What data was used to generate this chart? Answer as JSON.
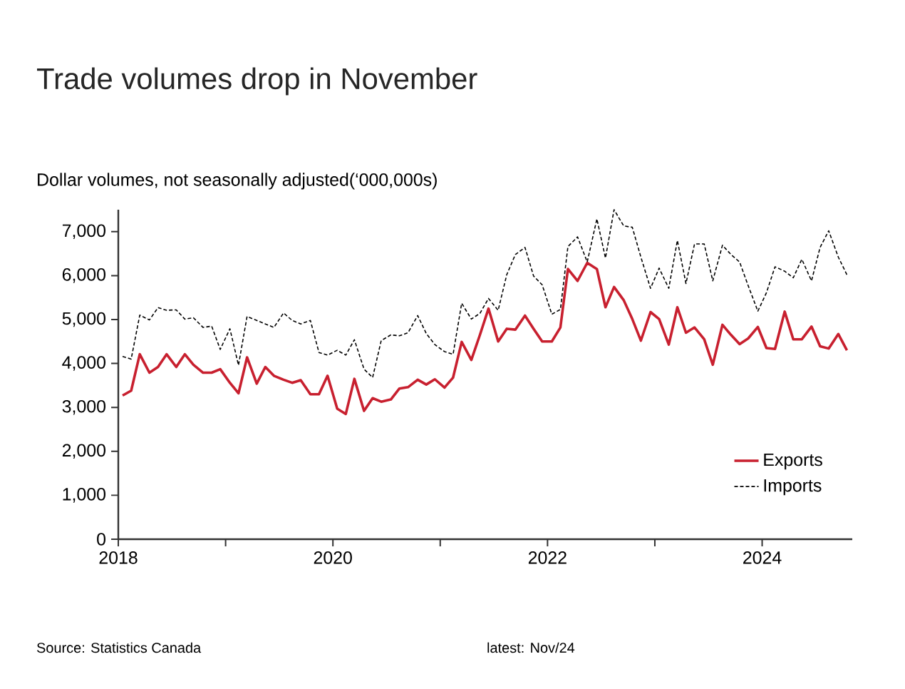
{
  "chart_data": {
    "type": "line",
    "title": "Trade volumes drop in November",
    "ylabel": "Dollar volumes, not seasonally adjusted(‘000,000s)",
    "xlim": [
      2018,
      2024.84
    ],
    "ylim": [
      0,
      7500
    ],
    "xticks": [
      2018,
      {
        "value": 2019,
        "label": null
      },
      2020,
      {
        "value": 2021,
        "label": null
      },
      2022,
      {
        "value": 2023,
        "label": null
      },
      2024
    ],
    "yticks": [
      0,
      {
        "value": 1000,
        "label": "1,000"
      },
      {
        "value": 2000,
        "label": "2,000"
      },
      {
        "value": 3000,
        "label": "3,000"
      },
      {
        "value": 4000,
        "label": "4,000"
      },
      {
        "value": 5000,
        "label": "5,000"
      },
      {
        "value": 6000,
        "label": "6,000"
      },
      {
        "value": 7000,
        "label": "7,000"
      }
    ],
    "legend": "bottom right",
    "grid": false,
    "series": [
      {
        "name": "Exports",
        "color": "#c8202f",
        "line_style": "solid",
        "x": [
          2018.04,
          2018.12,
          2018.2,
          2018.29,
          2018.37,
          2018.45,
          2018.54,
          2018.62,
          2018.7,
          2018.79,
          2018.87,
          2018.95,
          2019.04,
          2019.12,
          2019.2,
          2019.29,
          2019.37,
          2019.45,
          2019.54,
          2019.62,
          2019.7,
          2019.79,
          2019.87,
          2019.95,
          2020.04,
          2020.12,
          2020.2,
          2020.29,
          2020.37,
          2020.45,
          2020.54,
          2020.62,
          2020.7,
          2020.79,
          2020.87,
          2020.95,
          2021.04,
          2021.12,
          2021.2,
          2021.29,
          2021.37,
          2021.45,
          2021.54,
          2021.62,
          2021.7,
          2021.79,
          2021.87,
          2021.95,
          2022.04,
          2022.12,
          2022.19,
          2022.28,
          2022.37,
          2022.46,
          2022.54,
          2022.62,
          2022.71,
          2022.79,
          2022.87,
          2022.96,
          2023.04,
          2023.13,
          2023.21,
          2023.29,
          2023.37,
          2023.46,
          2023.54,
          2023.63,
          2023.71,
          2023.79,
          2023.87,
          2023.96,
          2024.04,
          2024.12,
          2024.21,
          2024.29,
          2024.37,
          2024.46,
          2024.54,
          2024.62,
          2024.71,
          2024.79
        ],
        "values": [
          3270,
          3380,
          4210,
          3790,
          3920,
          4210,
          3920,
          4210,
          3970,
          3790,
          3790,
          3870,
          3560,
          3320,
          4140,
          3540,
          3920,
          3720,
          3630,
          3560,
          3620,
          3300,
          3300,
          3720,
          2970,
          2850,
          3650,
          2920,
          3210,
          3130,
          3180,
          3430,
          3460,
          3630,
          3520,
          3640,
          3450,
          3680,
          4490,
          4080,
          4650,
          5250,
          4500,
          4790,
          4770,
          5090,
          4790,
          4500,
          4500,
          4820,
          6150,
          5880,
          6290,
          6150,
          5280,
          5740,
          5440,
          5010,
          4520,
          5170,
          5010,
          4430,
          5280,
          4700,
          4820,
          4550,
          3970,
          4880,
          4650,
          4440,
          4570,
          4830,
          4350,
          4330,
          5180,
          4550,
          4550,
          4840,
          4390,
          4340,
          4670,
          4300
        ]
      },
      {
        "name": "Imports",
        "color": "#000000",
        "line_style": "dashed",
        "x": [
          2018.04,
          2018.12,
          2018.2,
          2018.29,
          2018.37,
          2018.45,
          2018.54,
          2018.62,
          2018.7,
          2018.79,
          2018.87,
          2018.95,
          2019.04,
          2019.12,
          2019.2,
          2019.29,
          2019.37,
          2019.45,
          2019.54,
          2019.62,
          2019.7,
          2019.79,
          2019.87,
          2019.95,
          2020.04,
          2020.12,
          2020.2,
          2020.29,
          2020.37,
          2020.45,
          2020.54,
          2020.62,
          2020.7,
          2020.79,
          2020.87,
          2020.95,
          2021.04,
          2021.12,
          2021.2,
          2021.29,
          2021.37,
          2021.45,
          2021.54,
          2021.62,
          2021.7,
          2021.79,
          2021.87,
          2021.95,
          2022.04,
          2022.12,
          2022.19,
          2022.28,
          2022.37,
          2022.46,
          2022.54,
          2022.62,
          2022.71,
          2022.79,
          2022.87,
          2022.96,
          2023.04,
          2023.13,
          2023.21,
          2023.29,
          2023.37,
          2023.46,
          2023.54,
          2023.63,
          2023.71,
          2023.79,
          2023.87,
          2023.96,
          2024.04,
          2024.12,
          2024.21,
          2024.29,
          2024.37,
          2024.46,
          2024.54,
          2024.62,
          2024.71,
          2024.79
        ],
        "values": [
          4160,
          4100,
          5100,
          4990,
          5270,
          5210,
          5220,
          5010,
          5040,
          4820,
          4850,
          4320,
          4790,
          3960,
          5070,
          4980,
          4900,
          4820,
          5150,
          4980,
          4900,
          4980,
          4250,
          4190,
          4300,
          4190,
          4540,
          3870,
          3680,
          4520,
          4650,
          4630,
          4700,
          5090,
          4680,
          4430,
          4270,
          4210,
          5370,
          5010,
          5140,
          5480,
          5210,
          6020,
          6480,
          6640,
          5990,
          5790,
          5120,
          5230,
          6660,
          6880,
          6310,
          7290,
          6400,
          7500,
          7130,
          7100,
          6420,
          5710,
          6170,
          5710,
          6800,
          5820,
          6720,
          6720,
          5880,
          6690,
          6480,
          6310,
          5770,
          5190,
          5610,
          6200,
          6100,
          5950,
          6370,
          5880,
          6640,
          7020,
          6420,
          6020
        ]
      }
    ],
    "annotations": [
      "Source: Statistics Canada",
      "latest: Nov/24"
    ]
  }
}
